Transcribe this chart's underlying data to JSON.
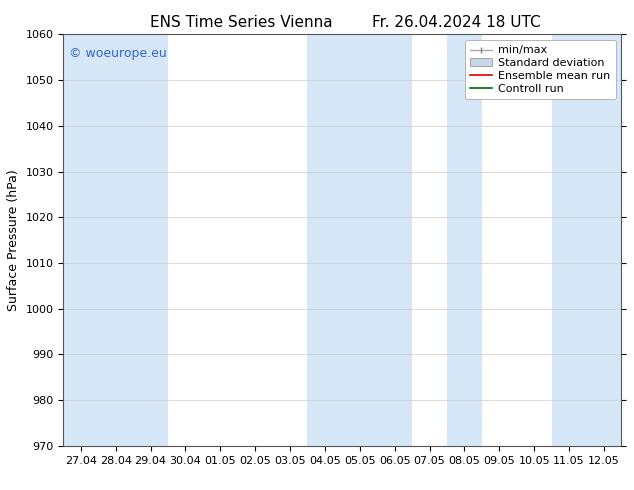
{
  "title_left": "ENS Time Series Vienna",
  "title_right": "Fr. 26.04.2024 18 UTC",
  "ylabel": "Surface Pressure (hPa)",
  "ylim": [
    970,
    1060
  ],
  "yticks": [
    970,
    980,
    990,
    1000,
    1010,
    1020,
    1030,
    1040,
    1050,
    1060
  ],
  "xtick_labels": [
    "27.04",
    "28.04",
    "29.04",
    "30.04",
    "01.05",
    "02.05",
    "03.05",
    "04.05",
    "05.05",
    "06.05",
    "07.05",
    "08.05",
    "09.05",
    "10.05",
    "11.05",
    "12.05"
  ],
  "watermark": "© woeurope.eu",
  "watermark_color": "#3366cc",
  "bg_color": "#ffffff",
  "plot_bg_color": "#ffffff",
  "shaded_band_color": "#d6e8f7",
  "title_fontsize": 11,
  "tick_fontsize": 8,
  "ylabel_fontsize": 9,
  "legend_fontsize": 8
}
